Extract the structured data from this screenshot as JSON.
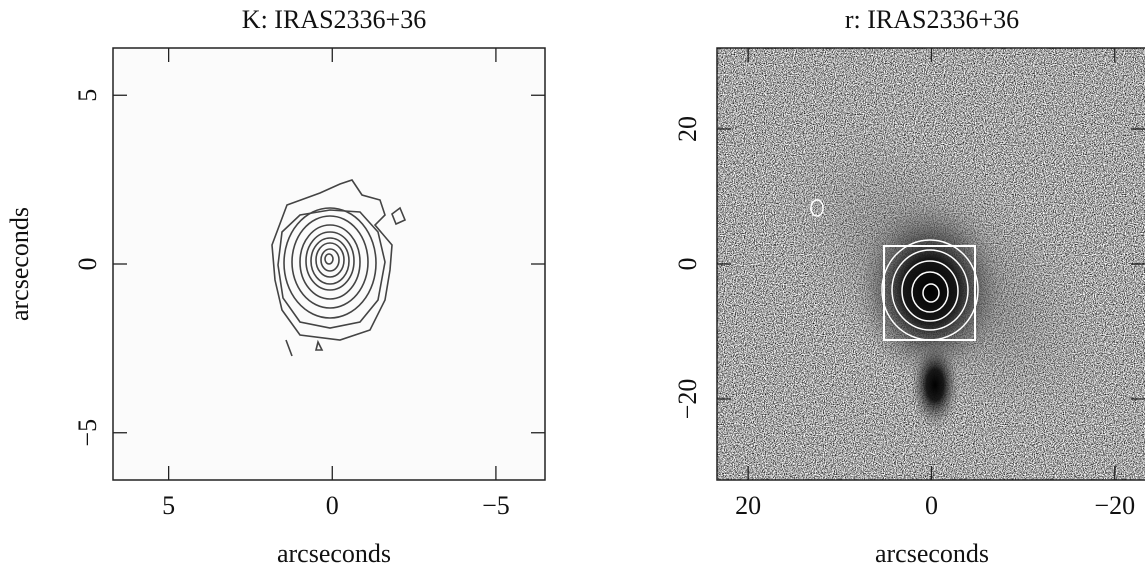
{
  "chart_data": [
    {
      "type": "contour",
      "title": "K: IRAS2336+36",
      "xlabel": "arcseconds",
      "ylabel": "arcseconds",
      "xlim": [
        6.7,
        -6.5
      ],
      "ylim": [
        -6.4,
        6.4
      ],
      "xticks": [
        5,
        0,
        {
          "value": -5,
          "label": "−5"
        }
      ],
      "yticks": [
        {
          "value": -5,
          "label": "−5"
        },
        0,
        5
      ]
    },
    {
      "type": "image",
      "title": "r: IRAS2336+36",
      "xlabel": "arcseconds",
      "xlim": [
        23.4,
        -23.3
      ],
      "ylim": [
        -32,
        32
      ],
      "xticks": [
        20,
        0,
        {
          "value": -20,
          "label": "−20"
        }
      ],
      "yticks": [
        {
          "value": -20,
          "label": "−20"
        },
        0,
        20
      ]
    }
  ]
}
